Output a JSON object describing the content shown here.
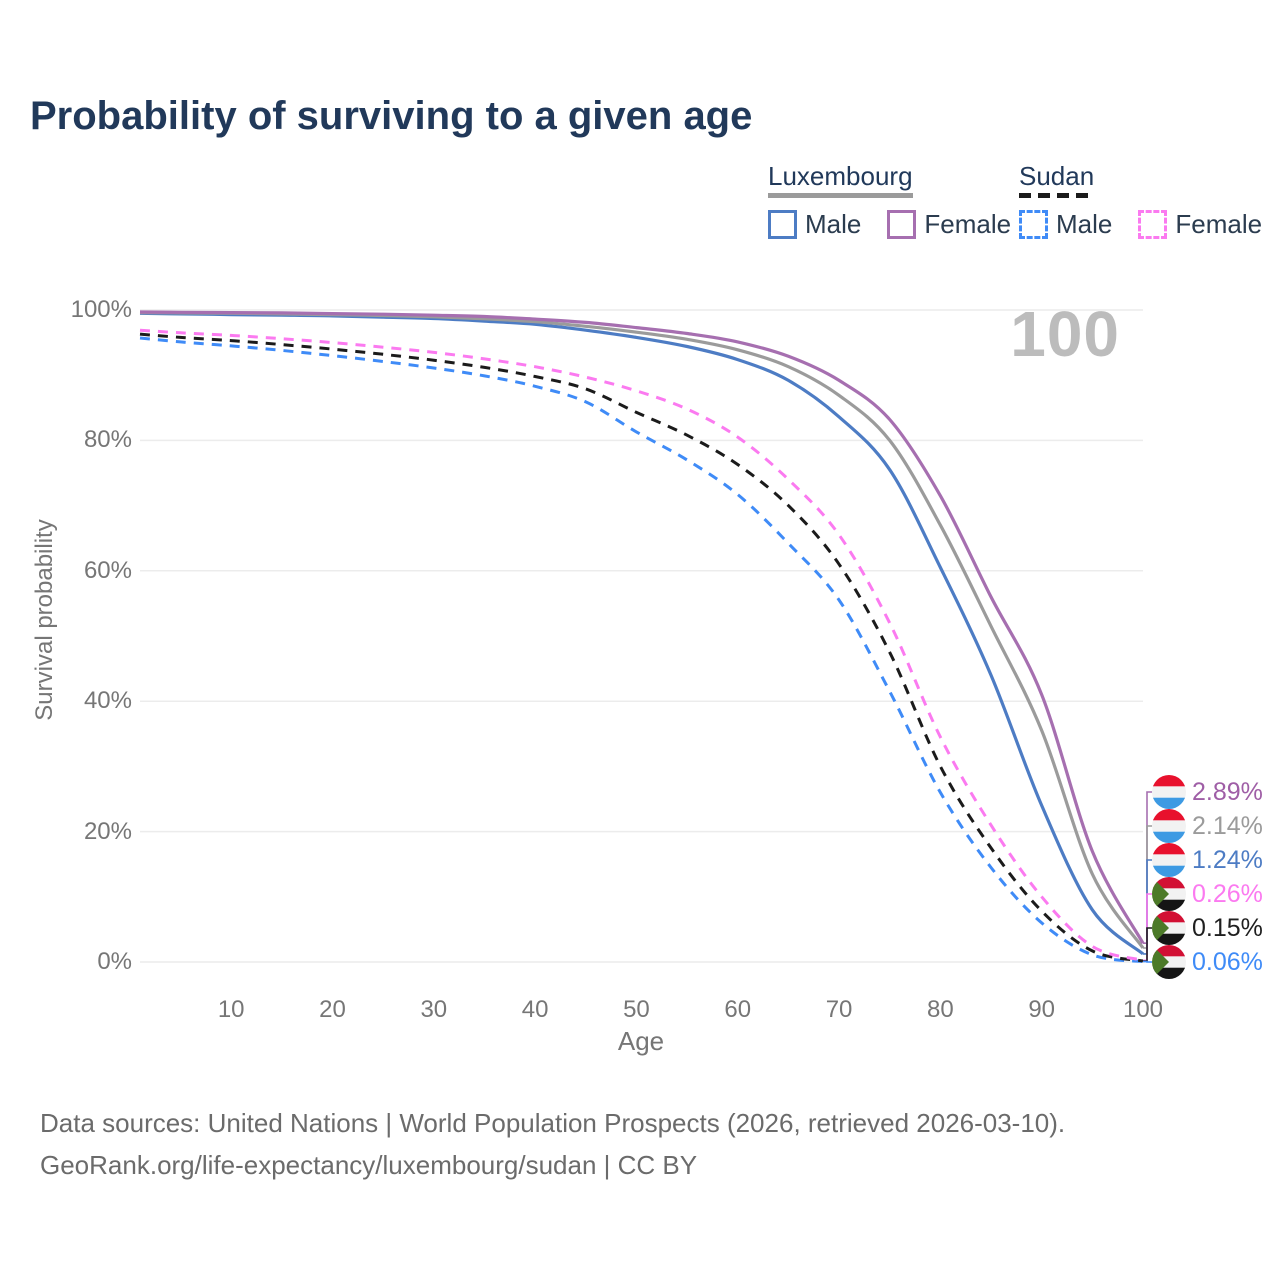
{
  "title": "Probability of surviving to a given age",
  "legend": {
    "groups": [
      {
        "label": "Luxembourg",
        "line_style": "solid",
        "line_color": "#9b9b9b",
        "items": [
          {
            "label": "Male",
            "color": "#4d7cc4",
            "dashed": false
          },
          {
            "label": "Female",
            "color": "#a66fb0",
            "dashed": false
          }
        ]
      },
      {
        "label": "Sudan",
        "line_style": "dashed",
        "line_color": "#1b1b1b",
        "items": [
          {
            "label": "Male",
            "color": "#3f8bf7",
            "dashed": true
          },
          {
            "label": "Female",
            "color": "#fb7af0",
            "dashed": true
          }
        ]
      }
    ]
  },
  "chart_data": {
    "type": "line",
    "title": "Probability of surviving to a given age",
    "xlabel": "Age",
    "ylabel": "Survival probability",
    "xlim": [
      1,
      100
    ],
    "ylim": [
      0,
      100
    ],
    "x_ticks": [
      10,
      20,
      30,
      40,
      50,
      60,
      70,
      80,
      90,
      100
    ],
    "y_ticks": [
      {
        "value": 0,
        "label": "0%"
      },
      {
        "value": 20,
        "label": "20%"
      },
      {
        "value": 40,
        "label": "40%"
      },
      {
        "value": 60,
        "label": "60%"
      },
      {
        "value": 80,
        "label": "80%"
      },
      {
        "value": 100,
        "label": "100%"
      }
    ],
    "grid": "horizontal",
    "legend_position": "top-right",
    "hover_age_label": "100",
    "x": [
      1,
      5,
      10,
      15,
      20,
      25,
      30,
      35,
      40,
      45,
      50,
      55,
      60,
      65,
      70,
      75,
      80,
      85,
      90,
      95,
      100
    ],
    "series": [
      {
        "name": "Luxembourg Female",
        "country": "Luxembourg",
        "sex": "Female",
        "flag": "luxembourg",
        "color": "#a66fb0",
        "label_color": "#9f5ea6",
        "dashed": false,
        "end_label": "2.89%",
        "values": [
          99.7,
          99.65,
          99.6,
          99.55,
          99.45,
          99.35,
          99.2,
          99.0,
          98.6,
          98.1,
          97.3,
          96.4,
          95.1,
          92.9,
          89.2,
          83.2,
          71.5,
          56.0,
          41.0,
          17.0,
          2.89
        ]
      },
      {
        "name": "Luxembourg Both sexes",
        "country": "Luxembourg",
        "sex": "Both sexes",
        "flag": "luxembourg",
        "color": "#9b9b9b",
        "label_color": "#9b9b9b",
        "dashed": false,
        "end_label": "2.14%",
        "values": [
          99.6,
          99.55,
          99.5,
          99.4,
          99.3,
          99.15,
          98.95,
          98.65,
          98.2,
          97.5,
          96.6,
          95.5,
          93.9,
          91.3,
          86.9,
          80.0,
          67.0,
          51.5,
          35.5,
          13.5,
          2.14
        ]
      },
      {
        "name": "Luxembourg Male",
        "country": "Luxembourg",
        "sex": "Male",
        "flag": "luxembourg",
        "color": "#4d7cc4",
        "label_color": "#4d7cc4",
        "dashed": false,
        "end_label": "1.24%",
        "values": [
          99.5,
          99.4,
          99.3,
          99.2,
          99.1,
          98.9,
          98.7,
          98.3,
          97.8,
          96.9,
          95.8,
          94.4,
          92.4,
          89.2,
          83.6,
          75.5,
          60.5,
          44.0,
          24.0,
          8.0,
          1.24
        ]
      },
      {
        "name": "Sudan Female",
        "country": "Sudan",
        "sex": "Female",
        "flag": "sudan",
        "color": "#fb7af0",
        "label_color": "#fb7af0",
        "dashed": true,
        "end_label": "0.26%",
        "values": [
          96.9,
          96.5,
          96.1,
          95.6,
          95.0,
          94.3,
          93.5,
          92.5,
          91.3,
          89.7,
          87.6,
          84.8,
          80.5,
          74.0,
          65.5,
          52.0,
          34.5,
          21.0,
          10.0,
          2.4,
          0.26
        ]
      },
      {
        "name": "Sudan Both sexes",
        "country": "Sudan",
        "sex": "Both sexes",
        "flag": "sudan",
        "color": "#1b1b1b",
        "label_color": "#1f1f1f",
        "dashed": true,
        "end_label": "0.15%",
        "values": [
          96.3,
          95.8,
          95.3,
          94.7,
          94.0,
          93.2,
          92.3,
          91.2,
          89.8,
          87.9,
          84.3,
          80.8,
          76.3,
          70.0,
          61.0,
          47.5,
          30.0,
          17.5,
          7.8,
          1.7,
          0.15
        ]
      },
      {
        "name": "Sudan Male",
        "country": "Sudan",
        "sex": "Male",
        "flag": "sudan",
        "color": "#3f8bf7",
        "label_color": "#3f8bf7",
        "dashed": true,
        "end_label": "0.06%",
        "values": [
          95.7,
          95.1,
          94.5,
          93.8,
          93.0,
          92.1,
          91.1,
          89.9,
          88.3,
          85.9,
          81.3,
          77.0,
          71.7,
          64.2,
          55.5,
          41.5,
          26.0,
          14.5,
          6.0,
          1.1,
          0.06
        ]
      }
    ]
  },
  "footer": {
    "line1": "Data sources: United Nations | World Population Prospects (2026, retrieved 2026-03-10).",
    "line2": "GeoRank.org/life-expectancy/luxembourg/sudan | CC BY"
  }
}
